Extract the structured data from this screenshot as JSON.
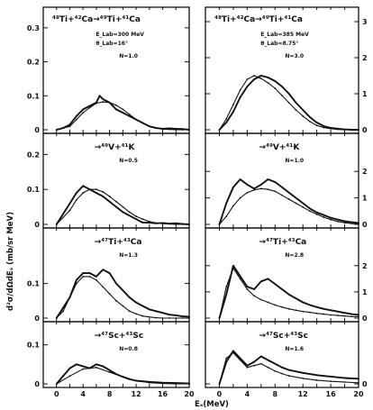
{
  "figure": {
    "ylabel": "d²σ/dΩdEₓ (mb/sr MeV)",
    "xlabel": "Eₓ(MeV)"
  },
  "chart_data": [
    {
      "type": "line",
      "column": "left",
      "reaction": {
        "beam": "48",
        "target": "42",
        "products": [
          "49",
          "41"
        ]
      },
      "title": "⁴⁸Ti+⁴²Ca→⁴⁹Ti+⁴¹Ca",
      "energy": "E_Lab=300 MeV",
      "angle": "θ_Lab=16°",
      "N": "N=1.0",
      "ylim": [
        0,
        0.35
      ],
      "yticks": [
        "0.3",
        "0.2",
        "0.1",
        "0"
      ],
      "ytick_values": [
        0.3,
        0.2,
        0.1,
        0
      ],
      "xlim": [
        -2,
        20
      ],
      "series": [
        {
          "role": "experiment",
          "x": [
            0,
            1,
            2,
            3,
            4,
            5,
            5.5,
            6,
            6.5,
            7,
            7.5,
            8,
            8.5,
            9,
            10,
            11,
            12,
            13,
            14,
            15,
            16,
            17,
            18,
            19,
            20
          ],
          "y": [
            0,
            0.005,
            0.015,
            0.04,
            0.06,
            0.07,
            0.075,
            0.08,
            0.1,
            0.09,
            0.085,
            0.08,
            0.07,
            0.06,
            0.05,
            0.04,
            0.03,
            0.02,
            0.01,
            0.005,
            0.003,
            0.004,
            0.003,
            0.002,
            0
          ]
        },
        {
          "role": "calculation",
          "x": [
            0,
            2,
            3,
            4,
            5,
            6,
            7,
            8,
            9,
            10,
            11,
            12,
            13,
            14,
            15,
            16,
            17,
            18,
            19,
            20
          ],
          "y": [
            0,
            0.01,
            0.03,
            0.05,
            0.065,
            0.078,
            0.082,
            0.08,
            0.072,
            0.06,
            0.045,
            0.03,
            0.02,
            0.01,
            0.005,
            0.002,
            0.001,
            0,
            0,
            0
          ]
        }
      ]
    },
    {
      "type": "line",
      "column": "left",
      "reaction": {
        "beam": "",
        "target": "",
        "products": [
          "49",
          "41"
        ]
      },
      "title": "→⁴⁹V+⁴¹K",
      "N": "N=0.5",
      "ylim": [
        0,
        0.25
      ],
      "yticks": [
        "0.2",
        "0.1",
        "0"
      ],
      "ytick_values": [
        0.2,
        0.1,
        0
      ],
      "xlim": [
        -2,
        20
      ],
      "series": [
        {
          "role": "experiment",
          "x": [
            0,
            1,
            2,
            3,
            4,
            5,
            6,
            7,
            8,
            9,
            10,
            11,
            12,
            13,
            14,
            15,
            16,
            17,
            18,
            19,
            20
          ],
          "y": [
            0,
            0.03,
            0.06,
            0.09,
            0.11,
            0.1,
            0.09,
            0.08,
            0.065,
            0.05,
            0.035,
            0.025,
            0.015,
            0.005,
            0.005,
            0.003,
            0.004,
            0.002,
            0.003,
            0.001,
            0
          ]
        },
        {
          "role": "calculation",
          "x": [
            0,
            2,
            3,
            4,
            5,
            6,
            7,
            8,
            9,
            10,
            11,
            12,
            13,
            14,
            15,
            16,
            17,
            18,
            19,
            20
          ],
          "y": [
            0,
            0.04,
            0.07,
            0.09,
            0.1,
            0.1,
            0.093,
            0.08,
            0.065,
            0.05,
            0.035,
            0.023,
            0.015,
            0.008,
            0.004,
            0.002,
            0.001,
            0,
            0,
            0
          ]
        }
      ]
    },
    {
      "type": "line",
      "column": "left",
      "reaction": {
        "beam": "",
        "target": "",
        "products": [
          "47",
          "43"
        ]
      },
      "title": "→⁴⁷Ti+⁴³Ca",
      "N": "N=1.3",
      "ylim": [
        0,
        0.25
      ],
      "yticks": [
        "0.1",
        "0"
      ],
      "ytick_values": [
        0.1,
        0
      ],
      "xlim": [
        -2,
        20
      ],
      "series": [
        {
          "role": "experiment",
          "x": [
            0,
            1,
            2,
            3,
            4,
            5,
            6,
            7,
            8,
            9,
            10,
            11,
            12,
            13,
            14,
            15,
            16,
            17,
            18,
            19,
            20
          ],
          "y": [
            0,
            0.03,
            0.06,
            0.11,
            0.13,
            0.13,
            0.12,
            0.14,
            0.13,
            0.1,
            0.08,
            0.06,
            0.045,
            0.035,
            0.025,
            0.02,
            0.015,
            0.01,
            0.008,
            0.005,
            0.004
          ]
        },
        {
          "role": "calculation",
          "x": [
            0,
            1,
            2,
            3,
            4,
            5,
            6,
            7,
            8,
            9,
            10,
            11,
            12,
            13,
            14,
            15,
            16,
            17,
            18,
            19,
            20
          ],
          "y": [
            0,
            0.02,
            0.06,
            0.1,
            0.12,
            0.12,
            0.11,
            0.09,
            0.07,
            0.05,
            0.035,
            0.02,
            0.012,
            0.006,
            0.003,
            0.001,
            0,
            0,
            0,
            0,
            0
          ]
        }
      ]
    },
    {
      "type": "line",
      "column": "left",
      "reaction": {
        "beam": "",
        "target": "",
        "products": [
          "47",
          "43"
        ]
      },
      "title": "→⁴⁷Sc+⁴³Sc",
      "N": "N=0.8",
      "ylim": [
        0,
        0.15
      ],
      "yticks": [
        "0.1",
        "0"
      ],
      "ytick_values": [
        0.1,
        0
      ],
      "xlim": [
        -2,
        20
      ],
      "xticks": [
        "0",
        "4",
        "8",
        "12",
        "16",
        "20"
      ],
      "xtick_values": [
        0,
        4,
        8,
        12,
        16,
        20
      ],
      "series": [
        {
          "role": "experiment",
          "x": [
            0,
            1,
            2,
            3,
            4,
            5,
            6,
            7,
            8,
            9,
            10,
            11,
            12,
            14,
            16,
            18,
            20
          ],
          "y": [
            0,
            0.02,
            0.04,
            0.05,
            0.045,
            0.04,
            0.05,
            0.045,
            0.035,
            0.025,
            0.018,
            0.012,
            0.008,
            0.005,
            0.003,
            0.002,
            0.001
          ]
        },
        {
          "role": "calculation",
          "x": [
            0,
            2,
            4,
            6,
            8,
            10,
            12,
            14,
            16,
            18,
            20
          ],
          "y": [
            0,
            0.02,
            0.038,
            0.042,
            0.03,
            0.018,
            0.008,
            0.003,
            0.001,
            0,
            0
          ]
        }
      ]
    },
    {
      "type": "line",
      "column": "right",
      "reaction": {
        "beam": "48",
        "target": "42",
        "products": [
          "49",
          "41"
        ]
      },
      "title": "⁴⁸Ti+⁴²Ca→⁴⁹Ti+⁴¹Ca",
      "energy": "E_Lab=385 MeV",
      "angle": "θ_Lab=8.75°",
      "N": "N=3.0",
      "ylim": [
        0,
        3.3
      ],
      "yticks": [
        "3",
        "2",
        "1",
        "0"
      ],
      "ytick_values": [
        3,
        2,
        1,
        0
      ],
      "xlim": [
        -2,
        20
      ],
      "series": [
        {
          "role": "experiment",
          "x": [
            0,
            1,
            2,
            3,
            4,
            5,
            6,
            7,
            8,
            9,
            10,
            11,
            12,
            13,
            14,
            15,
            16,
            17,
            18,
            19,
            20
          ],
          "y": [
            0,
            0.2,
            0.5,
            0.9,
            1.2,
            1.4,
            1.5,
            1.45,
            1.35,
            1.2,
            1.0,
            0.75,
            0.55,
            0.35,
            0.2,
            0.1,
            0.05,
            0.03,
            0.01,
            0,
            0
          ]
        },
        {
          "role": "calculation",
          "x": [
            0,
            1,
            2,
            3,
            4,
            5,
            6,
            7,
            8,
            9,
            10,
            11,
            12,
            13,
            14,
            15,
            16,
            17,
            18,
            19,
            20
          ],
          "y": [
            0,
            0.3,
            0.7,
            1.1,
            1.4,
            1.5,
            1.42,
            1.3,
            1.15,
            0.95,
            0.75,
            0.55,
            0.38,
            0.23,
            0.12,
            0.06,
            0.03,
            0.01,
            0,
            0,
            0
          ]
        }
      ]
    },
    {
      "type": "line",
      "column": "right",
      "reaction": {
        "beam": "",
        "target": "",
        "products": [
          "49",
          "41"
        ]
      },
      "title": "→⁴⁹V+⁴¹K",
      "N": "N=1.0",
      "ylim": [
        0,
        3.3
      ],
      "yticks": [
        "2",
        "1",
        "0"
      ],
      "ytick_values": [
        2,
        1,
        0
      ],
      "xlim": [
        -2,
        20
      ],
      "series": [
        {
          "role": "experiment",
          "x": [
            0,
            1,
            2,
            3,
            4,
            5,
            6,
            7,
            8,
            9,
            10,
            11,
            12,
            13,
            14,
            15,
            16,
            17,
            18,
            19,
            20
          ],
          "y": [
            0,
            0.8,
            1.4,
            1.7,
            1.5,
            1.35,
            1.5,
            1.7,
            1.6,
            1.4,
            1.2,
            1.0,
            0.8,
            0.6,
            0.45,
            0.35,
            0.25,
            0.18,
            0.12,
            0.08,
            0.05
          ]
        },
        {
          "role": "calculation",
          "x": [
            0,
            1,
            2,
            3,
            4,
            5,
            6,
            7,
            8,
            9,
            10,
            11,
            12,
            13,
            14,
            15,
            16,
            17,
            18,
            19,
            20
          ],
          "y": [
            0,
            0.3,
            0.7,
            1.0,
            1.2,
            1.3,
            1.35,
            1.32,
            1.25,
            1.1,
            0.95,
            0.8,
            0.65,
            0.5,
            0.38,
            0.27,
            0.18,
            0.11,
            0.06,
            0.03,
            0.01
          ]
        }
      ]
    },
    {
      "type": "line",
      "column": "right",
      "reaction": {
        "beam": "",
        "target": "",
        "products": [
          "47",
          "43"
        ]
      },
      "title": "→⁴⁷Ti+⁴³Ca",
      "N": "N=2.8",
      "ylim": [
        0,
        3.3
      ],
      "yticks": [
        "2",
        "1",
        "0"
      ],
      "ytick_values": [
        2,
        1,
        0
      ],
      "xlim": [
        -2,
        20
      ],
      "series": [
        {
          "role": "experiment",
          "x": [
            0,
            1,
            2,
            3,
            4,
            5,
            6,
            7,
            8,
            9,
            10,
            11,
            12,
            13,
            14,
            15,
            16,
            17,
            18,
            19,
            20
          ],
          "y": [
            0,
            0.9,
            2.0,
            1.6,
            1.2,
            1.1,
            1.4,
            1.5,
            1.3,
            1.1,
            0.9,
            0.75,
            0.6,
            0.5,
            0.42,
            0.35,
            0.3,
            0.25,
            0.2,
            0.15,
            0.12
          ]
        },
        {
          "role": "calculation",
          "x": [
            0,
            1,
            2,
            3,
            4,
            5,
            6,
            7,
            8,
            9,
            10,
            11,
            12,
            13,
            14,
            15,
            16,
            17,
            18,
            19,
            20
          ],
          "y": [
            0,
            1.2,
            1.9,
            1.5,
            1.1,
            0.85,
            0.7,
            0.6,
            0.5,
            0.42,
            0.35,
            0.3,
            0.25,
            0.22,
            0.18,
            0.15,
            0.12,
            0.1,
            0.08,
            0.06,
            0.05
          ]
        }
      ]
    },
    {
      "type": "line",
      "column": "right",
      "reaction": {
        "beam": "",
        "target": "",
        "products": [
          "47",
          "43"
        ]
      },
      "title": "→⁴⁷Sc+⁴³Sc",
      "N": "N=1.6",
      "ylim": [
        0,
        1.6
      ],
      "yticks": [
        "0"
      ],
      "ytick_values": [
        0
      ],
      "xlim": [
        -2,
        20
      ],
      "xticks": [
        "0",
        "4",
        "8",
        "12",
        "16",
        "20"
      ],
      "xtick_values": [
        0,
        4,
        8,
        12,
        16,
        20
      ],
      "series": [
        {
          "role": "experiment",
          "x": [
            0,
            1,
            2,
            3,
            4,
            5,
            6,
            7,
            8,
            9,
            10,
            12,
            14,
            16,
            18,
            20
          ],
          "y": [
            0,
            0.6,
            0.9,
            0.7,
            0.5,
            0.6,
            0.75,
            0.65,
            0.55,
            0.45,
            0.38,
            0.3,
            0.24,
            0.2,
            0.16,
            0.14
          ]
        },
        {
          "role": "calculation",
          "x": [
            0,
            1,
            2,
            3,
            4,
            5,
            6,
            7,
            8,
            9,
            10,
            12,
            14,
            16,
            18,
            20
          ],
          "y": [
            0,
            0.7,
            0.85,
            0.65,
            0.45,
            0.5,
            0.55,
            0.45,
            0.35,
            0.28,
            0.22,
            0.15,
            0.1,
            0.07,
            0.05,
            0.03
          ]
        }
      ]
    }
  ]
}
